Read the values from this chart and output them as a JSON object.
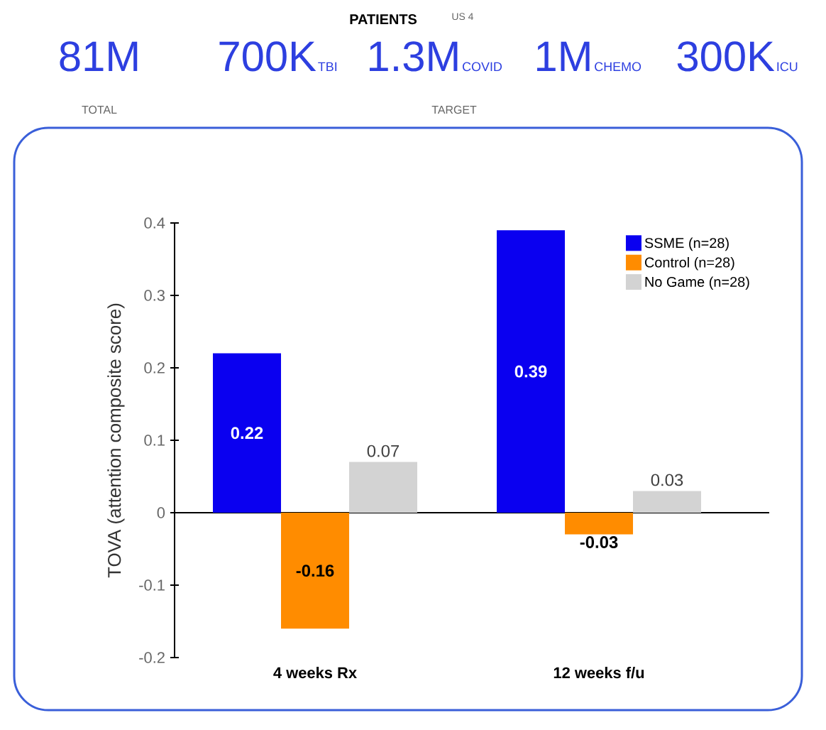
{
  "chart_data": {
    "type": "bar",
    "ylabel": "TOVA (attention composite score)",
    "categories": [
      "4 weeks Rx",
      "12 weeks f/u"
    ],
    "series": [
      {
        "name": "SSME (n=28)",
        "color": "#0a00f0",
        "values": [
          0.22,
          0.39
        ]
      },
      {
        "name": "Control (n=28)",
        "color": "#ff8c00",
        "values": [
          -0.16,
          -0.03
        ]
      },
      {
        "name": "No Game (n=28)",
        "color": "#d3d3d3",
        "values": [
          0.07,
          0.03
        ]
      }
    ],
    "ylim": [
      -0.2,
      0.4
    ],
    "yticks": [
      -0.2,
      -0.1,
      0,
      0.1,
      0.2,
      0.3,
      0.4
    ],
    "data_labels": true,
    "legend": "top right",
    "annotations": [
      "PATIENTS",
      "US 4",
      "81M",
      "TOTAL",
      "700K",
      "TBI",
      "1.3M",
      "COVID",
      "1M",
      "CHEMO",
      "300K",
      "ICU",
      "TARGET"
    ]
  }
}
